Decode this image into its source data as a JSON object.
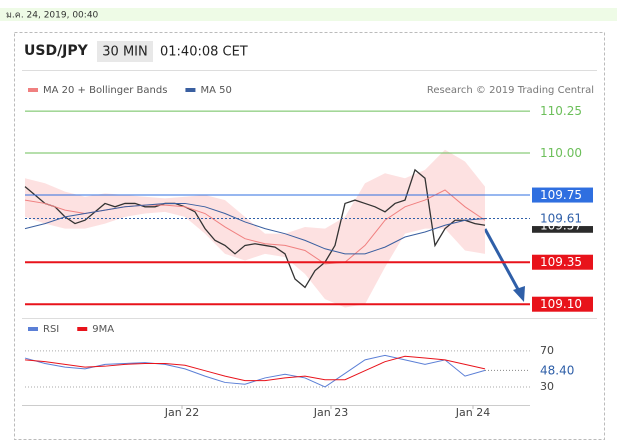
{
  "date_bar": "ม.ค. 24, 2019, 00:40",
  "header": {
    "symbol": "USD/JPY",
    "interval": "30 MIN",
    "time": "01:40:08 CET"
  },
  "credit": "Research © 2019 Trading Central",
  "chart_data": [
    {
      "type": "line",
      "xlim": [
        0,
        46
      ],
      "ylim": [
        109.05,
        110.31
      ],
      "xticks": [
        {
          "value": 15.7,
          "label": "Jan 22"
        },
        {
          "value": 30.6,
          "label": "Jan 23"
        },
        {
          "value": 44.8,
          "label": "Jan 24"
        }
      ],
      "series": [
        {
          "color": "#333333",
          "x": [
            0,
            1,
            2,
            3,
            4,
            5,
            6,
            7,
            8,
            9,
            10,
            11,
            12,
            13,
            14,
            15,
            16,
            17,
            18,
            19,
            20,
            21,
            22,
            23,
            24,
            25,
            26,
            27,
            28,
            29,
            30,
            31,
            32,
            33,
            34,
            35,
            36,
            37,
            38,
            39,
            40,
            41,
            42,
            43,
            44,
            45,
            46
          ],
          "values": [
            109.8,
            109.75,
            109.7,
            109.68,
            109.62,
            109.58,
            109.6,
            109.65,
            109.7,
            109.68,
            109.7,
            109.7,
            109.68,
            109.68,
            109.7,
            109.7,
            109.68,
            109.65,
            109.55,
            109.48,
            109.45,
            109.4,
            109.45,
            109.46,
            109.45,
            109.44,
            109.4,
            109.25,
            109.2,
            109.3,
            109.35,
            109.45,
            109.7,
            109.72,
            109.7,
            109.68,
            109.65,
            109.7,
            109.72,
            109.9,
            109.85,
            109.45,
            109.55,
            109.6,
            109.6,
            109.58,
            109.57
          ]
        },
        {
          "name": "MA 20 + Bollinger Bands",
          "color": "#f08080",
          "band_color": "#fcdada",
          "x": [
            0,
            2,
            4,
            6,
            8,
            10,
            12,
            14,
            16,
            18,
            20,
            22,
            24,
            26,
            28,
            30,
            32,
            34,
            36,
            38,
            40,
            42,
            44,
            46
          ],
          "values": [
            109.72,
            109.7,
            109.66,
            109.64,
            109.66,
            109.68,
            109.69,
            109.69,
            109.68,
            109.64,
            109.56,
            109.49,
            109.46,
            109.45,
            109.42,
            109.34,
            109.35,
            109.45,
            109.6,
            109.68,
            109.72,
            109.78,
            109.68,
            109.6
          ],
          "upper": [
            109.85,
            109.82,
            109.77,
            109.74,
            109.76,
            109.75,
            109.74,
            109.73,
            109.74,
            109.75,
            109.72,
            109.62,
            109.52,
            109.52,
            109.56,
            109.55,
            109.62,
            109.82,
            109.88,
            109.85,
            109.9,
            110.02,
            109.95,
            109.8
          ],
          "lower": [
            109.62,
            109.58,
            109.55,
            109.55,
            109.58,
            109.62,
            109.64,
            109.65,
            109.62,
            109.52,
            109.4,
            109.36,
            109.4,
            109.38,
            109.28,
            109.13,
            109.08,
            109.1,
            109.32,
            109.52,
            109.55,
            109.55,
            109.42,
            109.4
          ]
        },
        {
          "name": "MA 50",
          "color": "#3a5fa0",
          "x": [
            0,
            2,
            4,
            6,
            8,
            10,
            12,
            14,
            16,
            18,
            20,
            22,
            24,
            26,
            28,
            30,
            32,
            34,
            36,
            38,
            40,
            42,
            44,
            46
          ],
          "values": [
            109.55,
            109.58,
            109.62,
            109.64,
            109.66,
            109.68,
            109.69,
            109.7,
            109.7,
            109.68,
            109.64,
            109.59,
            109.55,
            109.52,
            109.48,
            109.43,
            109.4,
            109.4,
            109.44,
            109.5,
            109.53,
            109.57,
            109.6,
            109.61
          ]
        }
      ],
      "levels": [
        {
          "value": 110.25,
          "color": "#6cbf5a",
          "style": "text",
          "line": "solid"
        },
        {
          "value": 110,
          "label": "110.00",
          "color": "#6cbf5a",
          "style": "text",
          "line": "solid"
        },
        {
          "value": 109.75,
          "color": "#2f6fe0",
          "style": "box",
          "line": "solid"
        },
        {
          "value": 109.57,
          "color": "#2b2b2b",
          "style": "box",
          "line": "none"
        },
        {
          "value": 109.61,
          "color": "#2f5fa8",
          "style": "text",
          "line": "dotted"
        },
        {
          "value": 109.35,
          "color": "#e8131b",
          "style": "box",
          "line": "thick"
        },
        {
          "value": 109.1,
          "label": "109.10",
          "color": "#e8131b",
          "style": "box",
          "line": "thick"
        }
      ]
    },
    {
      "type": "line",
      "xlim": [
        0,
        46
      ],
      "ylim": [
        15,
        82
      ],
      "yticks": [
        30,
        70
      ],
      "current": {
        "value": 48.4,
        "label": "48.40"
      },
      "series": [
        {
          "name": "RSI",
          "color": "#5b7fd6",
          "x": [
            0,
            2,
            4,
            6,
            8,
            10,
            12,
            14,
            16,
            18,
            20,
            22,
            24,
            26,
            28,
            30,
            32,
            34,
            36,
            38,
            40,
            42,
            44,
            46
          ],
          "values": [
            62,
            56,
            52,
            50,
            55,
            56,
            57,
            55,
            50,
            42,
            35,
            33,
            40,
            44,
            40,
            30,
            45,
            60,
            65,
            60,
            55,
            60,
            42,
            48.4
          ]
        },
        {
          "name": "9MA",
          "color": "#e8131b",
          "x": [
            0,
            2,
            4,
            6,
            8,
            10,
            12,
            14,
            16,
            18,
            20,
            22,
            24,
            26,
            28,
            30,
            32,
            34,
            36,
            38,
            40,
            42,
            44,
            46
          ],
          "values": [
            60,
            58,
            55,
            52,
            53,
            55,
            56,
            56,
            54,
            48,
            42,
            37,
            37,
            40,
            42,
            38,
            38,
            48,
            58,
            64,
            62,
            60,
            55,
            50
          ]
        }
      ]
    }
  ]
}
